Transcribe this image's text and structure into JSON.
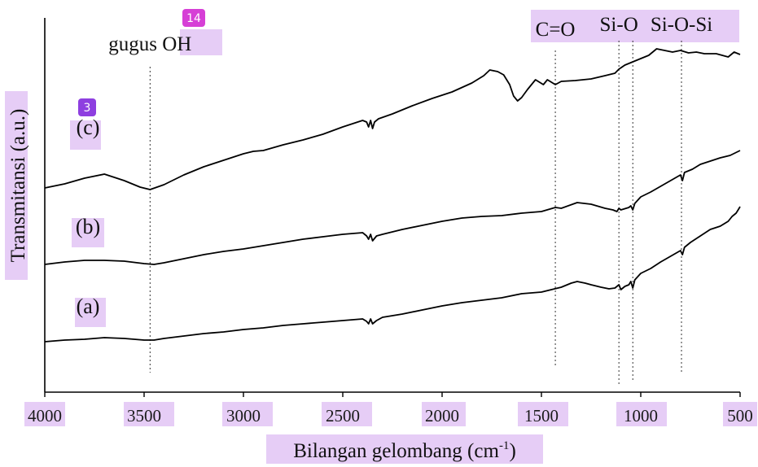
{
  "chart_data": {
    "type": "line",
    "xlabel_main": "Bilangan gelombang (cm",
    "xlabel_sup": "-1",
    "xlabel_close": ")",
    "ylabel": "Transmitansi (a.u.)",
    "x_ticks": [
      "4000",
      "3500",
      "3000",
      "2500",
      "2000",
      "1500",
      "1000",
      "500"
    ],
    "xlim": [
      4000,
      500
    ],
    "x_reversed": true,
    "grid": false,
    "series": [
      {
        "name": "(c)",
        "points": [
          [
            4000,
            231
          ],
          [
            3900,
            226
          ],
          [
            3800,
            219
          ],
          [
            3700,
            214
          ],
          [
            3600,
            222
          ],
          [
            3520,
            230
          ],
          [
            3470,
            233
          ],
          [
            3400,
            227
          ],
          [
            3300,
            215
          ],
          [
            3200,
            205
          ],
          [
            3100,
            197
          ],
          [
            3000,
            189
          ],
          [
            2950,
            186
          ],
          [
            2900,
            185
          ],
          [
            2800,
            178
          ],
          [
            2700,
            172
          ],
          [
            2600,
            165
          ],
          [
            2500,
            156
          ],
          [
            2400,
            148
          ],
          [
            2380,
            150
          ],
          [
            2370,
            156
          ],
          [
            2360,
            148
          ],
          [
            2350,
            158
          ],
          [
            2340,
            150
          ],
          [
            2320,
            146
          ],
          [
            2250,
            140
          ],
          [
            2150,
            130
          ],
          [
            2050,
            121
          ],
          [
            1950,
            113
          ],
          [
            1850,
            102
          ],
          [
            1790,
            93
          ],
          [
            1760,
            86
          ],
          [
            1720,
            88
          ],
          [
            1690,
            92
          ],
          [
            1660,
            104
          ],
          [
            1640,
            118
          ],
          [
            1620,
            124
          ],
          [
            1600,
            120
          ],
          [
            1570,
            110
          ],
          [
            1530,
            98
          ],
          [
            1490,
            104
          ],
          [
            1470,
            98
          ],
          [
            1430,
            104
          ],
          [
            1400,
            100
          ],
          [
            1330,
            99
          ],
          [
            1250,
            97
          ],
          [
            1180,
            93
          ],
          [
            1130,
            90
          ],
          [
            1110,
            85
          ],
          [
            1080,
            80
          ],
          [
            1000,
            72
          ],
          [
            960,
            68
          ],
          [
            920,
            60
          ],
          [
            880,
            62
          ],
          [
            840,
            64
          ],
          [
            800,
            62
          ],
          [
            760,
            65
          ],
          [
            720,
            64
          ],
          [
            680,
            66
          ],
          [
            620,
            66
          ],
          [
            560,
            70
          ],
          [
            530,
            64
          ],
          [
            500,
            67
          ]
        ]
      },
      {
        "name": "(b)",
        "points": [
          [
            4000,
            325
          ],
          [
            3900,
            322
          ],
          [
            3800,
            320
          ],
          [
            3700,
            320
          ],
          [
            3600,
            321
          ],
          [
            3500,
            324
          ],
          [
            3450,
            325
          ],
          [
            3400,
            323
          ],
          [
            3300,
            318
          ],
          [
            3200,
            313
          ],
          [
            3100,
            309
          ],
          [
            3000,
            306
          ],
          [
            2900,
            302
          ],
          [
            2800,
            298
          ],
          [
            2700,
            294
          ],
          [
            2600,
            291
          ],
          [
            2500,
            288
          ],
          [
            2400,
            286
          ],
          [
            2380,
            290
          ],
          [
            2370,
            294
          ],
          [
            2360,
            288
          ],
          [
            2350,
            296
          ],
          [
            2330,
            290
          ],
          [
            2300,
            288
          ],
          [
            2200,
            282
          ],
          [
            2100,
            277
          ],
          [
            2000,
            272
          ],
          [
            1900,
            268
          ],
          [
            1800,
            266
          ],
          [
            1700,
            265
          ],
          [
            1600,
            262
          ],
          [
            1500,
            260
          ],
          [
            1430,
            255
          ],
          [
            1400,
            256
          ],
          [
            1320,
            249
          ],
          [
            1250,
            251
          ],
          [
            1180,
            256
          ],
          [
            1140,
            258
          ],
          [
            1120,
            260
          ],
          [
            1110,
            256
          ],
          [
            1100,
            258
          ],
          [
            1060,
            255
          ],
          [
            1050,
            253
          ],
          [
            1040,
            258
          ],
          [
            1030,
            250
          ],
          [
            1000,
            242
          ],
          [
            950,
            236
          ],
          [
            900,
            229
          ],
          [
            850,
            222
          ],
          [
            800,
            215
          ],
          [
            790,
            222
          ],
          [
            780,
            212
          ],
          [
            740,
            208
          ],
          [
            700,
            202
          ],
          [
            650,
            198
          ],
          [
            600,
            194
          ],
          [
            550,
            191
          ],
          [
            500,
            185
          ]
        ]
      },
      {
        "name": "(a)",
        "points": [
          [
            4000,
            420
          ],
          [
            3900,
            418
          ],
          [
            3800,
            417
          ],
          [
            3700,
            415
          ],
          [
            3600,
            416
          ],
          [
            3500,
            418
          ],
          [
            3450,
            418
          ],
          [
            3400,
            416
          ],
          [
            3300,
            413
          ],
          [
            3200,
            410
          ],
          [
            3100,
            408
          ],
          [
            3000,
            405
          ],
          [
            2900,
            403
          ],
          [
            2800,
            400
          ],
          [
            2700,
            398
          ],
          [
            2600,
            396
          ],
          [
            2500,
            394
          ],
          [
            2400,
            392
          ],
          [
            2380,
            395
          ],
          [
            2370,
            398
          ],
          [
            2360,
            392
          ],
          [
            2350,
            398
          ],
          [
            2330,
            394
          ],
          [
            2300,
            390
          ],
          [
            2200,
            386
          ],
          [
            2100,
            381
          ],
          [
            2000,
            376
          ],
          [
            1900,
            372
          ],
          [
            1800,
            369
          ],
          [
            1700,
            366
          ],
          [
            1600,
            361
          ],
          [
            1500,
            359
          ],
          [
            1450,
            356
          ],
          [
            1400,
            353
          ],
          [
            1350,
            348
          ],
          [
            1320,
            346
          ],
          [
            1280,
            348
          ],
          [
            1250,
            350
          ],
          [
            1200,
            353
          ],
          [
            1160,
            355
          ],
          [
            1130,
            354
          ],
          [
            1110,
            350
          ],
          [
            1100,
            356
          ],
          [
            1080,
            352
          ],
          [
            1060,
            350
          ],
          [
            1050,
            346
          ],
          [
            1040,
            354
          ],
          [
            1030,
            344
          ],
          [
            1000,
            336
          ],
          [
            950,
            330
          ],
          [
            900,
            322
          ],
          [
            850,
            315
          ],
          [
            800,
            308
          ],
          [
            790,
            313
          ],
          [
            780,
            304
          ],
          [
            750,
            298
          ],
          [
            700,
            290
          ],
          [
            650,
            282
          ],
          [
            600,
            278
          ],
          [
            560,
            272
          ],
          [
            540,
            266
          ],
          [
            520,
            262
          ],
          [
            510,
            258
          ],
          [
            500,
            254
          ]
        ]
      }
    ],
    "reference_lines": [
      {
        "label": "gugus ",
        "label_highlight": "OH",
        "x": 3470,
        "y_top": 82,
        "y_bottom": 458,
        "text_y": 62
      },
      {
        "label": "C=O",
        "x": 1430,
        "y_top": 62,
        "y_bottom": 450,
        "text_y": 44
      },
      {
        "label": "Si-O",
        "x": 1110,
        "y_top": 50,
        "y_bottom": 472,
        "text_y": 38
      },
      {
        "label": "",
        "x": 1040,
        "y_top": 50,
        "y_bottom": 470,
        "text_y": 38
      },
      {
        "label": "Si-O-Si",
        "x": 795,
        "y_top": 50,
        "y_bottom": 458,
        "text_y": 38
      }
    ],
    "curve_labels": [
      {
        "text": "(c)",
        "y": 165
      },
      {
        "text": "(b)",
        "y": 287
      },
      {
        "text": "(a)",
        "y": 385
      }
    ],
    "badges": [
      {
        "text": "14"
      },
      {
        "text": "3"
      }
    ]
  }
}
